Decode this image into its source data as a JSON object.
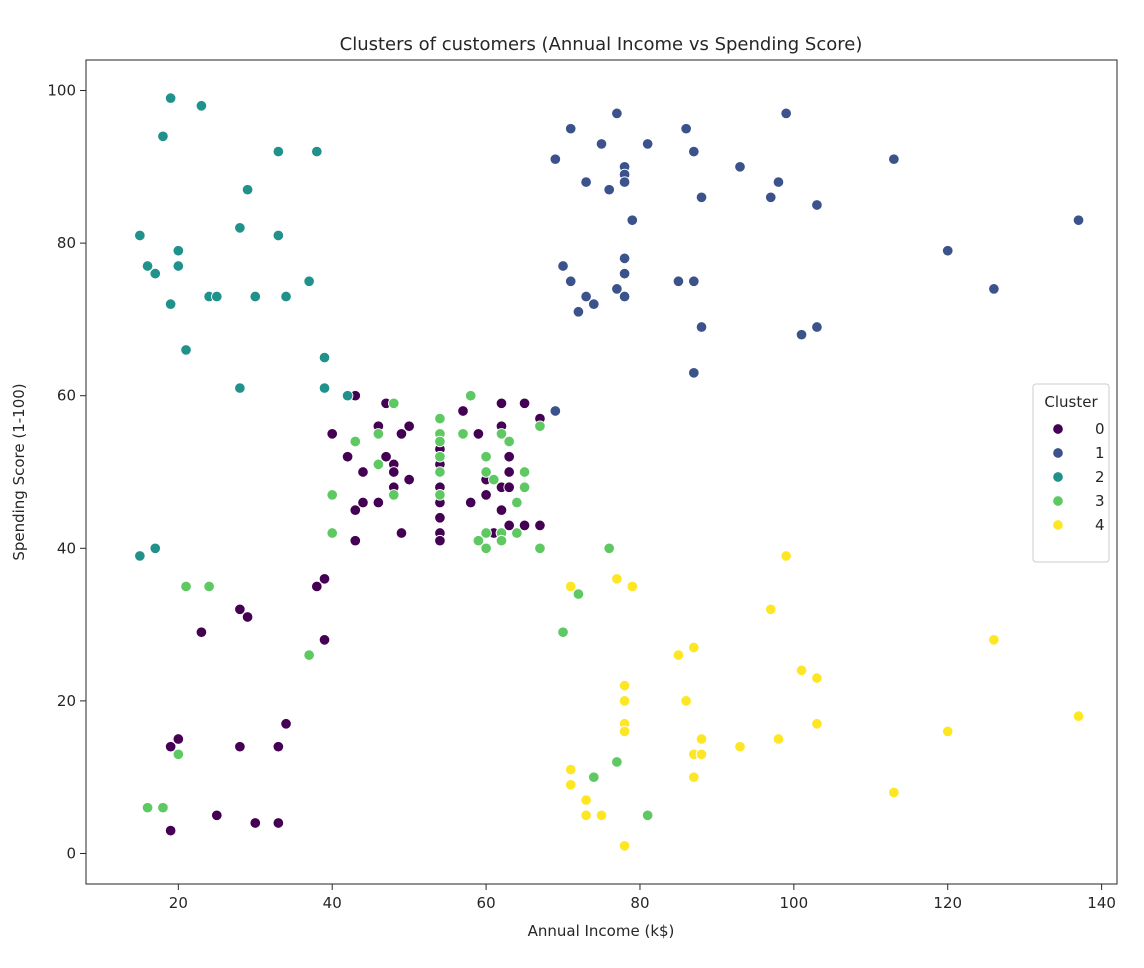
{
  "chart_data": {
    "type": "scatter",
    "title": "Clusters of customers (Annual Income vs Spending Score)",
    "xlabel": "Annual Income (k$)",
    "ylabel": "Spending Score (1-100)",
    "xlim": [
      8,
      142
    ],
    "ylim": [
      -4,
      104
    ],
    "xticks": [
      20,
      40,
      60,
      80,
      100,
      120,
      140
    ],
    "yticks": [
      0,
      20,
      40,
      60,
      80,
      100
    ],
    "grid": false,
    "legend": {
      "title": "Cluster",
      "placement": "center-right"
    },
    "series": [
      {
        "name": "0",
        "color": "#440154",
        "points": [
          [
            19,
            3
          ],
          [
            19,
            14
          ],
          [
            20,
            15
          ],
          [
            23,
            29
          ],
          [
            25,
            5
          ],
          [
            28,
            14
          ],
          [
            28,
            32
          ],
          [
            29,
            31
          ],
          [
            30,
            4
          ],
          [
            33,
            4
          ],
          [
            33,
            14
          ],
          [
            34,
            17
          ],
          [
            38,
            35
          ],
          [
            39,
            36
          ],
          [
            39,
            28
          ],
          [
            40,
            55
          ],
          [
            42,
            52
          ],
          [
            43,
            60
          ],
          [
            43,
            45
          ],
          [
            43,
            41
          ],
          [
            44,
            50
          ],
          [
            44,
            46
          ],
          [
            46,
            56
          ],
          [
            46,
            46
          ],
          [
            47,
            59
          ],
          [
            47,
            52
          ],
          [
            48,
            51
          ],
          [
            48,
            50
          ],
          [
            48,
            48
          ],
          [
            49,
            55
          ],
          [
            49,
            42
          ],
          [
            50,
            56
          ],
          [
            50,
            49
          ],
          [
            54,
            53
          ],
          [
            54,
            52
          ],
          [
            54,
            51
          ],
          [
            54,
            48
          ],
          [
            54,
            47
          ],
          [
            54,
            46
          ],
          [
            54,
            44
          ],
          [
            54,
            42
          ],
          [
            54,
            41
          ],
          [
            57,
            58
          ],
          [
            58,
            46
          ],
          [
            59,
            55
          ],
          [
            60,
            49
          ],
          [
            60,
            47
          ],
          [
            61,
            42
          ],
          [
            62,
            59
          ],
          [
            62,
            56
          ],
          [
            62,
            48
          ],
          [
            62,
            45
          ],
          [
            62,
            42
          ],
          [
            63,
            52
          ],
          [
            63,
            50
          ],
          [
            63,
            48
          ],
          [
            63,
            43
          ],
          [
            65,
            59
          ],
          [
            65,
            43
          ],
          [
            67,
            57
          ],
          [
            67,
            43
          ]
        ]
      },
      {
        "name": "1",
        "color": "#3b528b",
        "points": [
          [
            69,
            91
          ],
          [
            69,
            58
          ],
          [
            70,
            77
          ],
          [
            71,
            95
          ],
          [
            71,
            75
          ],
          [
            72,
            71
          ],
          [
            73,
            88
          ],
          [
            73,
            73
          ],
          [
            74,
            72
          ],
          [
            75,
            93
          ],
          [
            76,
            87
          ],
          [
            77,
            97
          ],
          [
            77,
            74
          ],
          [
            78,
            90
          ],
          [
            78,
            89
          ],
          [
            78,
            88
          ],
          [
            78,
            78
          ],
          [
            78,
            76
          ],
          [
            78,
            73
          ],
          [
            79,
            83
          ],
          [
            81,
            93
          ],
          [
            85,
            75
          ],
          [
            86,
            95
          ],
          [
            87,
            92
          ],
          [
            87,
            75
          ],
          [
            87,
            63
          ],
          [
            88,
            86
          ],
          [
            88,
            69
          ],
          [
            93,
            90
          ],
          [
            97,
            86
          ],
          [
            98,
            88
          ],
          [
            99,
            97
          ],
          [
            101,
            68
          ],
          [
            103,
            85
          ],
          [
            103,
            69
          ],
          [
            113,
            91
          ],
          [
            120,
            79
          ],
          [
            126,
            74
          ],
          [
            137,
            83
          ]
        ]
      },
      {
        "name": "2",
        "color": "#21918c",
        "points": [
          [
            15,
            81
          ],
          [
            15,
            39
          ],
          [
            16,
            77
          ],
          [
            17,
            76
          ],
          [
            17,
            40
          ],
          [
            18,
            94
          ],
          [
            19,
            99
          ],
          [
            19,
            72
          ],
          [
            20,
            79
          ],
          [
            20,
            77
          ],
          [
            21,
            66
          ],
          [
            23,
            98
          ],
          [
            24,
            73
          ],
          [
            25,
            73
          ],
          [
            28,
            82
          ],
          [
            28,
            61
          ],
          [
            29,
            87
          ],
          [
            30,
            73
          ],
          [
            33,
            92
          ],
          [
            33,
            81
          ],
          [
            34,
            73
          ],
          [
            37,
            75
          ],
          [
            38,
            92
          ],
          [
            39,
            65
          ],
          [
            39,
            61
          ],
          [
            42,
            60
          ]
        ]
      },
      {
        "name": "3",
        "color": "#5ec962",
        "points": [
          [
            16,
            6
          ],
          [
            18,
            6
          ],
          [
            20,
            13
          ],
          [
            21,
            35
          ],
          [
            24,
            35
          ],
          [
            37,
            26
          ],
          [
            40,
            47
          ],
          [
            40,
            42
          ],
          [
            43,
            54
          ],
          [
            46,
            55
          ],
          [
            46,
            51
          ],
          [
            48,
            59
          ],
          [
            48,
            47
          ],
          [
            54,
            57
          ],
          [
            54,
            55
          ],
          [
            54,
            54
          ],
          [
            54,
            52
          ],
          [
            54,
            50
          ],
          [
            54,
            47
          ],
          [
            57,
            55
          ],
          [
            58,
            60
          ],
          [
            59,
            41
          ],
          [
            60,
            52
          ],
          [
            60,
            50
          ],
          [
            60,
            42
          ],
          [
            60,
            40
          ],
          [
            61,
            49
          ],
          [
            62,
            55
          ],
          [
            62,
            42
          ],
          [
            62,
            41
          ],
          [
            63,
            54
          ],
          [
            64,
            46
          ],
          [
            64,
            42
          ],
          [
            65,
            50
          ],
          [
            65,
            48
          ],
          [
            67,
            56
          ],
          [
            67,
            40
          ],
          [
            70,
            29
          ],
          [
            72,
            34
          ],
          [
            73,
            5
          ],
          [
            74,
            10
          ],
          [
            76,
            40
          ],
          [
            77,
            12
          ],
          [
            81,
            5
          ]
        ]
      },
      {
        "name": "4",
        "color": "#fde725",
        "points": [
          [
            71,
            35
          ],
          [
            71,
            11
          ],
          [
            71,
            9
          ],
          [
            73,
            7
          ],
          [
            73,
            5
          ],
          [
            75,
            5
          ],
          [
            77,
            36
          ],
          [
            78,
            22
          ],
          [
            78,
            20
          ],
          [
            78,
            17
          ],
          [
            78,
            16
          ],
          [
            78,
            1
          ],
          [
            79,
            35
          ],
          [
            85,
            26
          ],
          [
            86,
            20
          ],
          [
            87,
            27
          ],
          [
            87,
            13
          ],
          [
            87,
            10
          ],
          [
            88,
            15
          ],
          [
            88,
            13
          ],
          [
            93,
            14
          ],
          [
            97,
            32
          ],
          [
            98,
            15
          ],
          [
            99,
            39
          ],
          [
            101,
            24
          ],
          [
            103,
            23
          ],
          [
            103,
            17
          ],
          [
            113,
            8
          ],
          [
            120,
            16
          ],
          [
            126,
            28
          ],
          [
            137,
            18
          ]
        ]
      }
    ]
  }
}
